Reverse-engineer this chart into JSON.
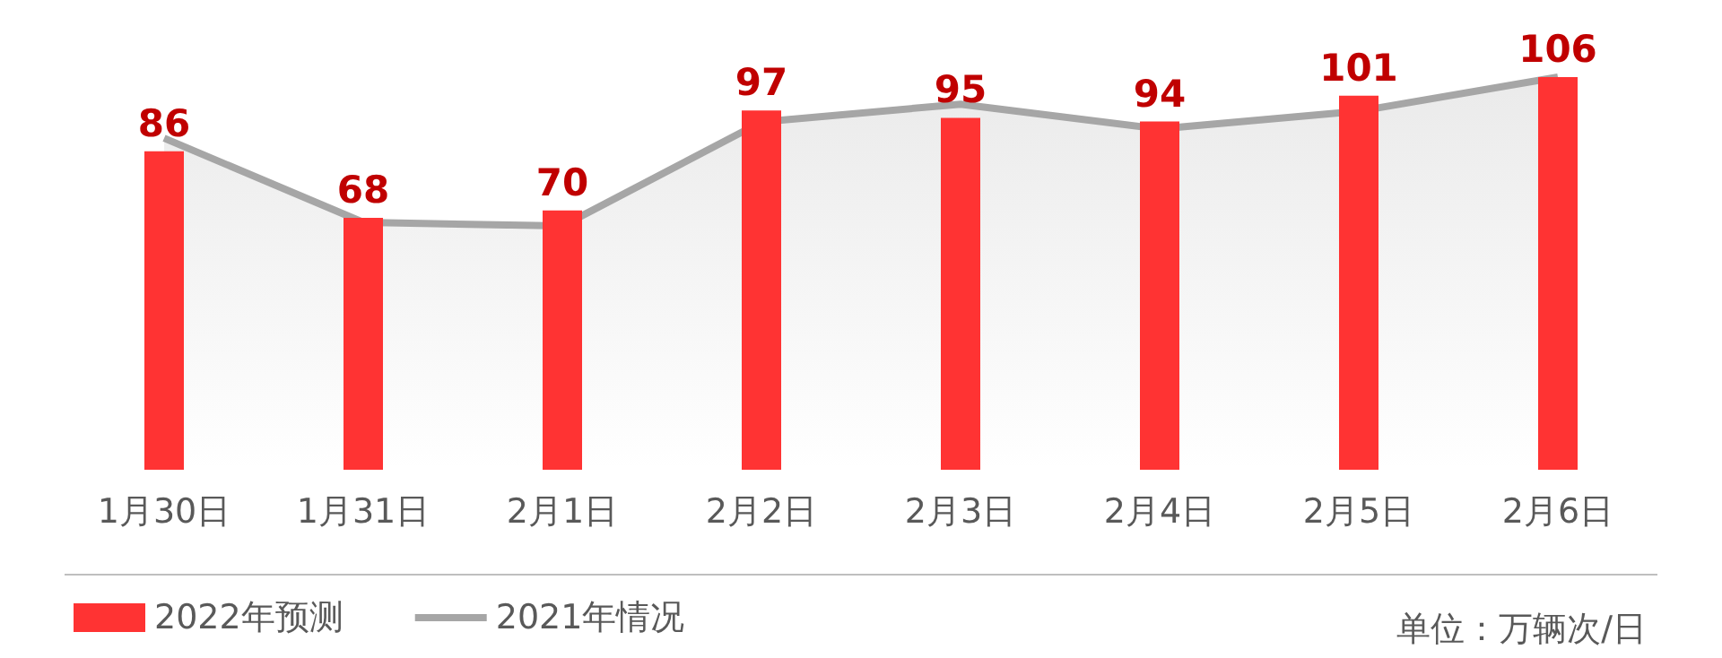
{
  "chart_data": {
    "type": "bar",
    "categories": [
      "1月30日",
      "1月31日",
      "2月1日",
      "2月2日",
      "2月3日",
      "2月4日",
      "2月5日",
      "2月6日"
    ],
    "series": [
      {
        "name": "2022年预测",
        "color": "#ff3333",
        "values": [
          86,
          68,
          70,
          97,
          95,
          94,
          101,
          106
        ],
        "value_labels": [
          "86",
          "68",
          "70",
          "97",
          "95",
          "94",
          "101",
          "106"
        ]
      },
      {
        "name": "2021年情况",
        "type": "area",
        "color": "#a6a6a6",
        "values": [
          89.5,
          66.8,
          65.8,
          93.9,
          98.7,
          92,
          96.8,
          106
        ]
      }
    ],
    "annotations": [
      "单位：万辆次/日"
    ],
    "legend": "bottom left",
    "grid": false,
    "marker": "none"
  }
}
